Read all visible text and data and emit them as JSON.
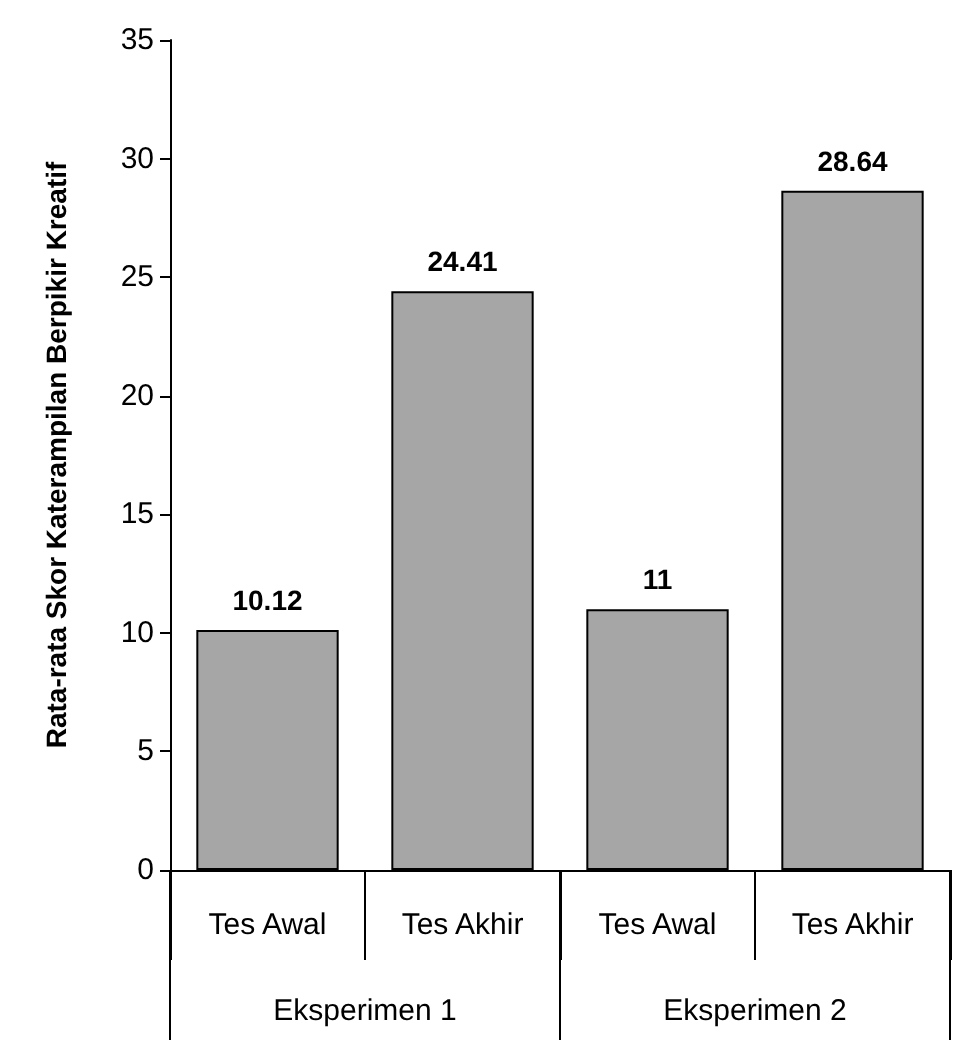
{
  "chart_data": {
    "type": "bar",
    "ylabel": "Rata-rata Skor Katerampilan Berpikir Kreatif",
    "categories": [
      "Tes Awal",
      "Tes Akhir",
      "Tes Awal",
      "Tes Akhir"
    ],
    "values": [
      10.12,
      24.41,
      11,
      28.64
    ],
    "color": "#a6a6a6",
    "ylim": [
      0,
      35
    ],
    "yticks": [
      0,
      5,
      10,
      15,
      20,
      25,
      30,
      35
    ],
    "grid": false,
    "data_labels": true,
    "annotations": [
      "Eksperimen 1",
      "Eksperimen 2"
    ]
  }
}
